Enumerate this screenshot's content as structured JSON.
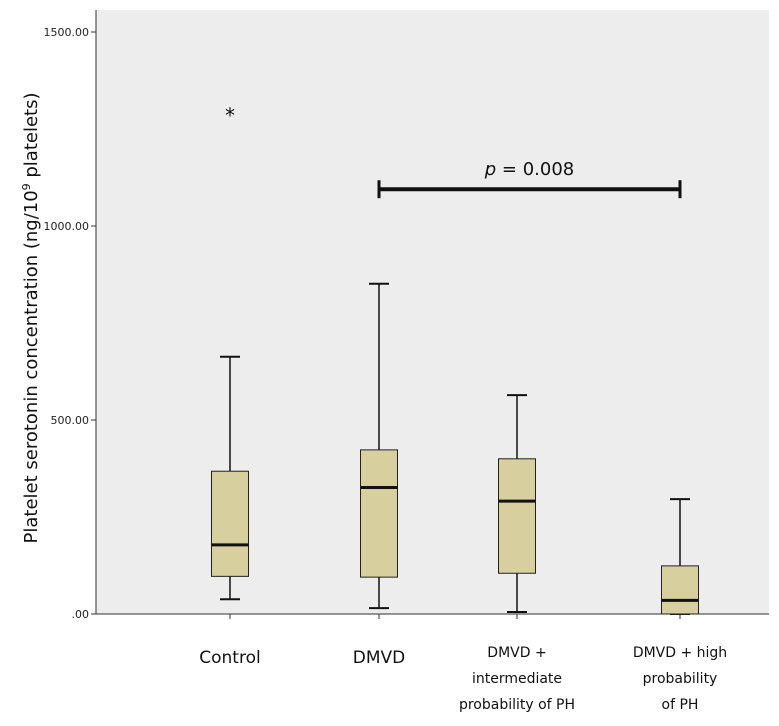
{
  "chart_data": {
    "type": "boxplot",
    "ylabel_parts": {
      "prefix": "Platelet serotonin concentration (ng/10",
      "sup": "9",
      "suffix": " platelets)"
    },
    "ylim": [
      0,
      1500
    ],
    "y_ticks": [
      0,
      500,
      1000,
      1500
    ],
    "y_tick_labels": [
      ".00",
      "500.00",
      "1000.00",
      "1500.00"
    ],
    "grid": false,
    "box_color": "#d8cf9e",
    "background_color": "#ededed",
    "categories": [
      {
        "lines": [
          "Control"
        ],
        "min": 38,
        "q1": 97,
        "median": 178,
        "q3": 368,
        "max": 663,
        "outliers": [
          1288
        ]
      },
      {
        "lines": [
          "DMVD"
        ],
        "min": 15,
        "q1": 95,
        "median": 326,
        "q3": 423,
        "max": 851,
        "outliers": []
      },
      {
        "lines": [
          "DMVD +",
          "intermediate",
          "probability of PH"
        ],
        "min": 5,
        "q1": 105,
        "median": 291,
        "q3": 400,
        "max": 564,
        "outliers": []
      },
      {
        "lines": [
          "DMVD + high",
          "probability",
          "of PH"
        ],
        "min": 0,
        "q1": 0,
        "median": 35,
        "q3": 124,
        "max": 296,
        "outliers": []
      }
    ],
    "annotation": {
      "italic": "p",
      "rest": " = 0.008",
      "from_category": 1,
      "to_category": 3,
      "y_value": 1100
    }
  }
}
